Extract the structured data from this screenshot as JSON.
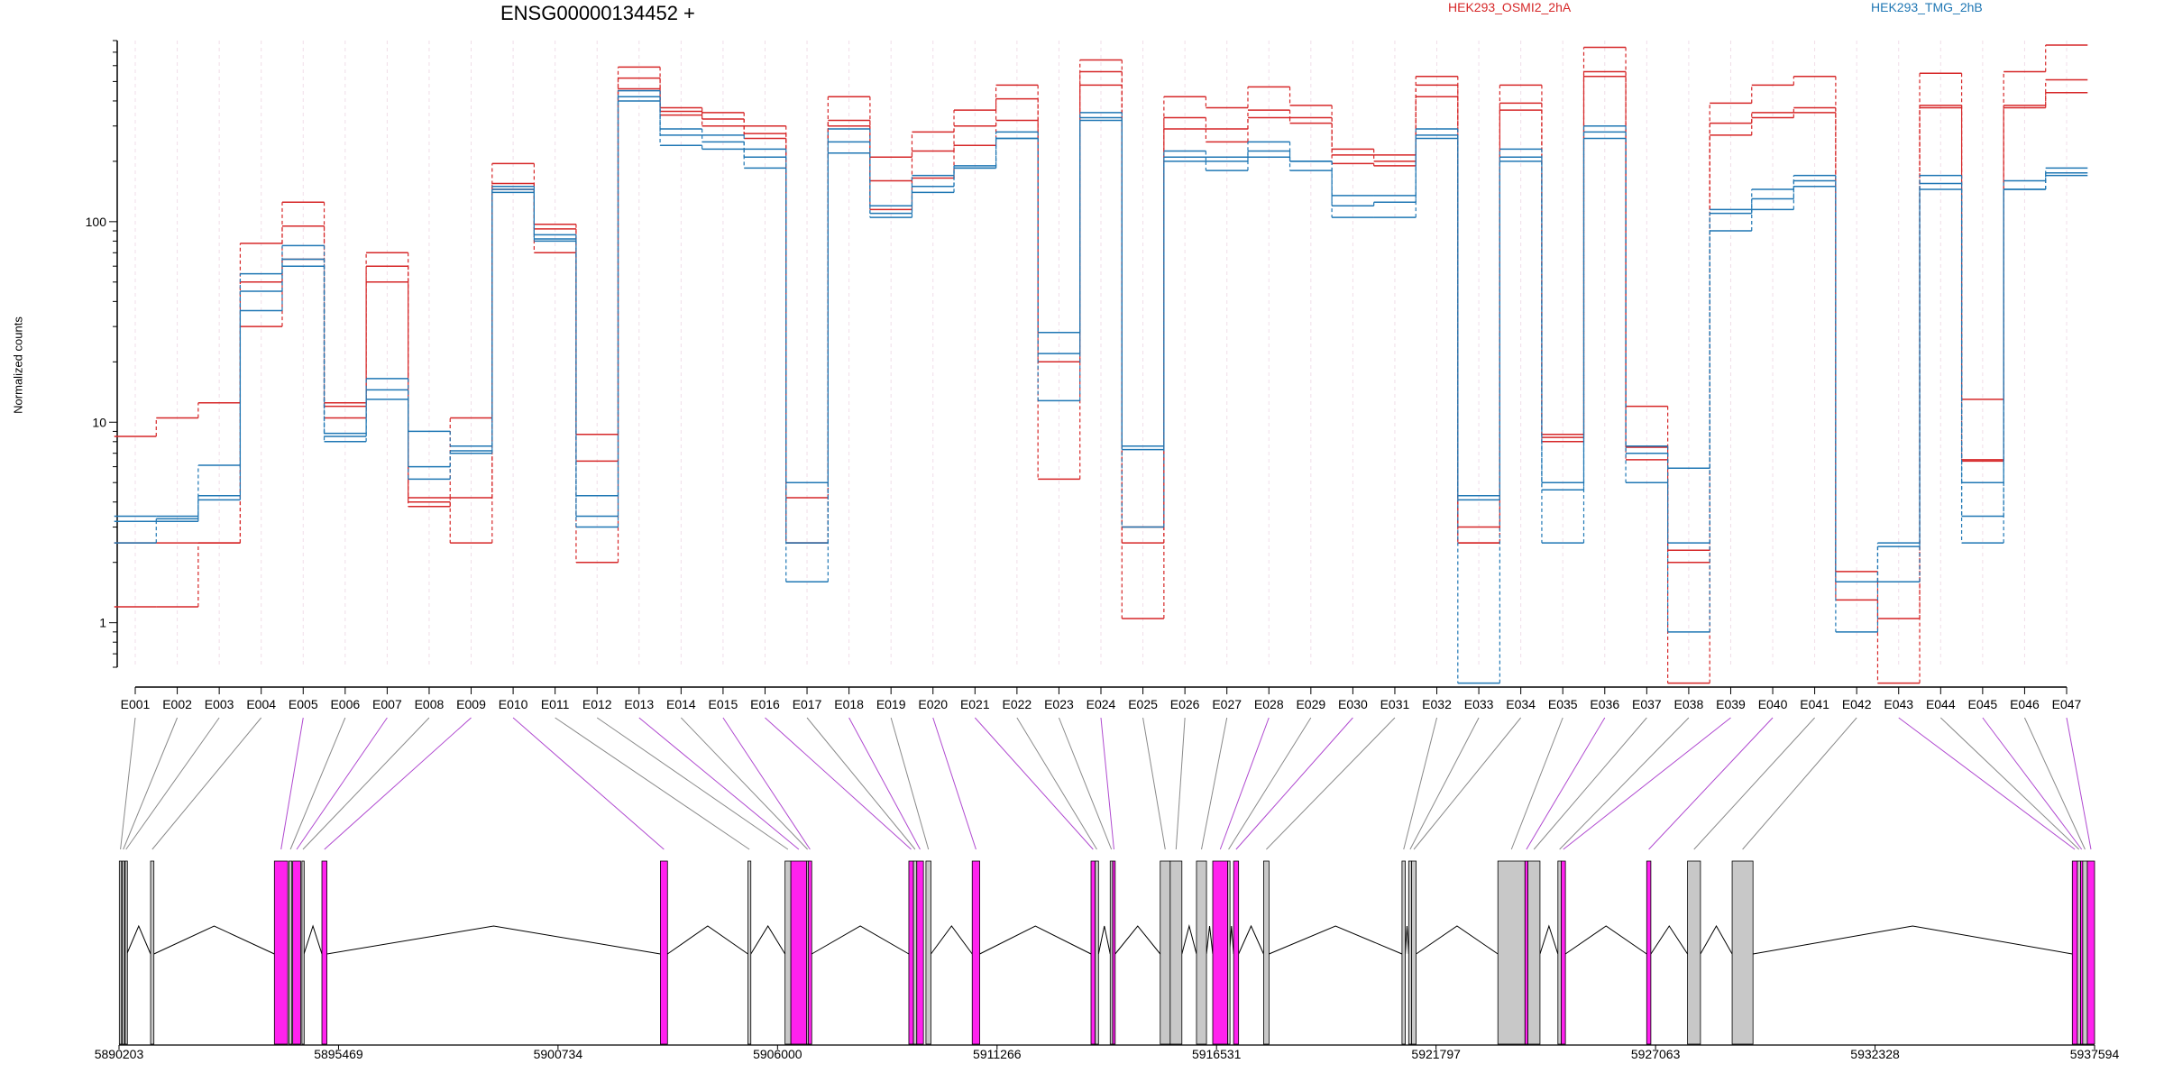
{
  "chart_data": {
    "type": "line",
    "title": "ENSG00000134452 +",
    "xlabel": "",
    "ylabel": "Normalized counts",
    "yscale": "log",
    "ylim": [
      0.6,
      800
    ],
    "yticks": [
      1,
      10,
      100
    ],
    "ytick_labels": [
      "1",
      "10",
      "100"
    ],
    "legend_placement": "top-right",
    "colors": {
      "HEK293_OSMI2_2hA": "#d62728",
      "HEK293_TMG_2hB": "#1f77b4",
      "highlight": "#ff22ee",
      "gray_exon": "#c8c8c8"
    },
    "categories": [
      "E001",
      "E002",
      "E003",
      "E004",
      "E005",
      "E006",
      "E007",
      "E008",
      "E009",
      "E010",
      "E011",
      "E012",
      "E013",
      "E014",
      "E015",
      "E016",
      "E017",
      "E018",
      "E019",
      "E020",
      "E021",
      "E022",
      "E023",
      "E024",
      "E025",
      "E026",
      "E027",
      "E028",
      "E029",
      "E030",
      "E031",
      "E032",
      "E033",
      "E034",
      "E035",
      "E036",
      "E037",
      "E038",
      "E039",
      "E040",
      "E041",
      "E042",
      "E043",
      "E044",
      "E045",
      "E046",
      "E047"
    ],
    "series": [
      {
        "name": "HEK293_OSMI2_2hA",
        "group": "HEK293_OSMI2_2hA",
        "values": [
          8.5,
          10.5,
          12.5,
          78,
          125,
          12.5,
          70,
          4.2,
          10.5,
          195,
          97,
          8.7,
          590,
          370,
          350,
          300,
          4.2,
          420,
          210,
          280,
          360,
          480,
          28,
          640,
          3.0,
          420,
          370,
          470,
          380,
          230,
          215,
          530,
          2.5,
          480,
          8.7,
          740,
          12.0,
          2.3,
          390,
          480,
          530,
          1.8,
          1.6,
          550,
          13.0,
          560,
          760
        ]
      },
      {
        "name": "HEK293_OSMI2_2hA",
        "group": "HEK293_OSMI2_2hA",
        "values": [
          1.2,
          1.2,
          2.5,
          50,
          95,
          12,
          60,
          3.8,
          4.2,
          155,
          92,
          6.4,
          520,
          355,
          325,
          275,
          2.5,
          320,
          160,
          225,
          300,
          410,
          20,
          560,
          2.5,
          330,
          290,
          360,
          330,
          215,
          200,
          480,
          3.0,
          390,
          8.4,
          560,
          7.5,
          2.0,
          310,
          350,
          370,
          1.3,
          1.05,
          380,
          6.5,
          380,
          510
        ]
      },
      {
        "name": "HEK293_OSMI2_2hA",
        "group": "HEK293_OSMI2_2hA",
        "values": [
          2.5,
          2.5,
          2.5,
          30,
          65,
          10.5,
          50,
          4.0,
          2.5,
          145,
          70,
          2.0,
          460,
          340,
          300,
          260,
          2.5,
          300,
          115,
          165,
          240,
          320,
          5.2,
          480,
          1.05,
          290,
          250,
          330,
          310,
          195,
          190,
          420,
          2.5,
          360,
          8.0,
          530,
          6.5,
          0.5,
          270,
          330,
          350,
          1.6,
          0.5,
          370,
          6.4,
          370,
          440
        ]
      },
      {
        "name": "HEK293_TMG_2hB",
        "group": "HEK293_TMG_2hB",
        "values": [
          3.4,
          3.4,
          6.1,
          55,
          76,
          8.8,
          16.5,
          9.0,
          7.6,
          150,
          86,
          4.3,
          450,
          290,
          270,
          230,
          5.0,
          290,
          120,
          170,
          190,
          280,
          28,
          350,
          7.6,
          225,
          210,
          250,
          200,
          135,
          135,
          290,
          4.3,
          230,
          4.6,
          300,
          7.6,
          5.9,
          115,
          145,
          170,
          1.6,
          2.5,
          170,
          5.0,
          160,
          185
        ]
      },
      {
        "name": "HEK293_TMG_2hB",
        "group": "HEK293_TMG_2hB",
        "values": [
          3.2,
          3.3,
          4.3,
          45,
          65,
          8.5,
          14.5,
          6.0,
          7.0,
          140,
          80,
          3.4,
          420,
          270,
          250,
          210,
          2.5,
          250,
          110,
          150,
          185,
          260,
          22,
          320,
          7.3,
          210,
          200,
          225,
          200,
          120,
          125,
          270,
          4.1,
          210,
          5.0,
          280,
          7.0,
          2.5,
          110,
          130,
          150,
          1.6,
          1.6,
          155,
          3.4,
          145,
          175
        ]
      },
      {
        "name": "HEK293_TMG_2hB",
        "group": "HEK293_TMG_2hB",
        "values": [
          2.5,
          3.2,
          4.1,
          36,
          60,
          8.0,
          13.0,
          5.2,
          7.2,
          145,
          82,
          3.0,
          400,
          240,
          230,
          185,
          1.6,
          220,
          105,
          140,
          185,
          260,
          12.8,
          330,
          3.0,
          200,
          180,
          210,
          180,
          105,
          105,
          260,
          0.5,
          200,
          2.5,
          260,
          5.0,
          0.9,
          90,
          115,
          160,
          0.9,
          2.4,
          145,
          2.5,
          145,
          170
        ]
      }
    ],
    "gene_axis": {
      "tick_labels": [
        "5890203",
        "5895469",
        "5900734",
        "5906000",
        "5911266",
        "5916531",
        "5921797",
        "5927063",
        "5932328",
        "5937594"
      ],
      "tick_values": [
        5890203,
        5895469,
        5900734,
        5906000,
        5911266,
        5916531,
        5921797,
        5927063,
        5932328,
        5937594
      ]
    },
    "exons": [
      {
        "id": "E001",
        "start": 5890210,
        "end": 5890265,
        "highlight": false
      },
      {
        "id": "E002",
        "start": 5890280,
        "end": 5890330,
        "highlight": false
      },
      {
        "id": "E003",
        "start": 5890350,
        "end": 5890390,
        "highlight": false
      },
      {
        "id": "E004",
        "start": 5890960,
        "end": 5891040,
        "highlight": false
      },
      {
        "id": "E005",
        "start": 5893930,
        "end": 5894250,
        "highlight": true
      },
      {
        "id": "E006",
        "start": 5894280,
        "end": 5894350,
        "highlight": false
      },
      {
        "id": "E007",
        "start": 5894370,
        "end": 5894560,
        "highlight": true
      },
      {
        "id": "E008",
        "start": 5894590,
        "end": 5894640,
        "highlight": false
      },
      {
        "id": "E009",
        "start": 5895070,
        "end": 5895190,
        "highlight": true
      },
      {
        "id": "E010",
        "start": 5903190,
        "end": 5903360,
        "highlight": true
      },
      {
        "id": "E011",
        "start": 5905290,
        "end": 5905360,
        "highlight": false
      },
      {
        "id": "E012",
        "start": 5906180,
        "end": 5906320,
        "highlight": false
      },
      {
        "id": "E013",
        "start": 5906320,
        "end": 5906700,
        "highlight": true
      },
      {
        "id": "E014",
        "start": 5906700,
        "end": 5906740,
        "highlight": false
      },
      {
        "id": "E015",
        "start": 5906740,
        "end": 5906820,
        "highlight": true
      },
      {
        "id": "E016",
        "start": 5909150,
        "end": 5909260,
        "highlight": true
      },
      {
        "id": "E017",
        "start": 5909260,
        "end": 5909340,
        "highlight": false
      },
      {
        "id": "E018",
        "start": 5909340,
        "end": 5909500,
        "highlight": true
      },
      {
        "id": "E019",
        "start": 5909560,
        "end": 5909680,
        "highlight": false
      },
      {
        "id": "E020",
        "start": 5910670,
        "end": 5910850,
        "highlight": true
      },
      {
        "id": "E021",
        "start": 5913520,
        "end": 5913620,
        "highlight": true
      },
      {
        "id": "E022",
        "start": 5913620,
        "end": 5913700,
        "highlight": false
      },
      {
        "id": "E023",
        "start": 5913980,
        "end": 5914040,
        "highlight": false
      },
      {
        "id": "E024",
        "start": 5914040,
        "end": 5914100,
        "highlight": true
      },
      {
        "id": "E025",
        "start": 5915180,
        "end": 5915420,
        "highlight": false
      },
      {
        "id": "E026",
        "start": 5915420,
        "end": 5915700,
        "highlight": false
      },
      {
        "id": "E027",
        "start": 5916050,
        "end": 5916290,
        "highlight": false
      },
      {
        "id": "E028",
        "start": 5916440,
        "end": 5916800,
        "highlight": true
      },
      {
        "id": "E029",
        "start": 5916800,
        "end": 5916840,
        "highlight": false
      },
      {
        "id": "E030",
        "start": 5916940,
        "end": 5917060,
        "highlight": true
      },
      {
        "id": "E031",
        "start": 5917660,
        "end": 5917790,
        "highlight": false
      },
      {
        "id": "E032",
        "start": 5920980,
        "end": 5921060,
        "highlight": false
      },
      {
        "id": "E033",
        "start": 5921140,
        "end": 5921210,
        "highlight": false
      },
      {
        "id": "E034",
        "start": 5921210,
        "end": 5921320,
        "highlight": false
      },
      {
        "id": "E035",
        "start": 5923280,
        "end": 5923930,
        "highlight": false
      },
      {
        "id": "E036",
        "start": 5923930,
        "end": 5924000,
        "highlight": true
      },
      {
        "id": "E037",
        "start": 5924000,
        "end": 5924290,
        "highlight": false
      },
      {
        "id": "E038",
        "start": 5924720,
        "end": 5924800,
        "highlight": false
      },
      {
        "id": "E039",
        "start": 5924800,
        "end": 5924900,
        "highlight": true
      },
      {
        "id": "E040",
        "start": 5926850,
        "end": 5926950,
        "highlight": true
      },
      {
        "id": "E041",
        "start": 5927830,
        "end": 5928140,
        "highlight": false
      },
      {
        "id": "E042",
        "start": 5928900,
        "end": 5929400,
        "highlight": false
      },
      {
        "id": "E043",
        "start": 5937060,
        "end": 5937180,
        "highlight": true
      },
      {
        "id": "E044",
        "start": 5937180,
        "end": 5937260,
        "highlight": false
      },
      {
        "id": "E045",
        "start": 5937260,
        "end": 5937310,
        "highlight": true
      },
      {
        "id": "E046",
        "start": 5937310,
        "end": 5937420,
        "highlight": false
      },
      {
        "id": "E047",
        "start": 5937420,
        "end": 5937594,
        "highlight": true
      }
    ]
  }
}
